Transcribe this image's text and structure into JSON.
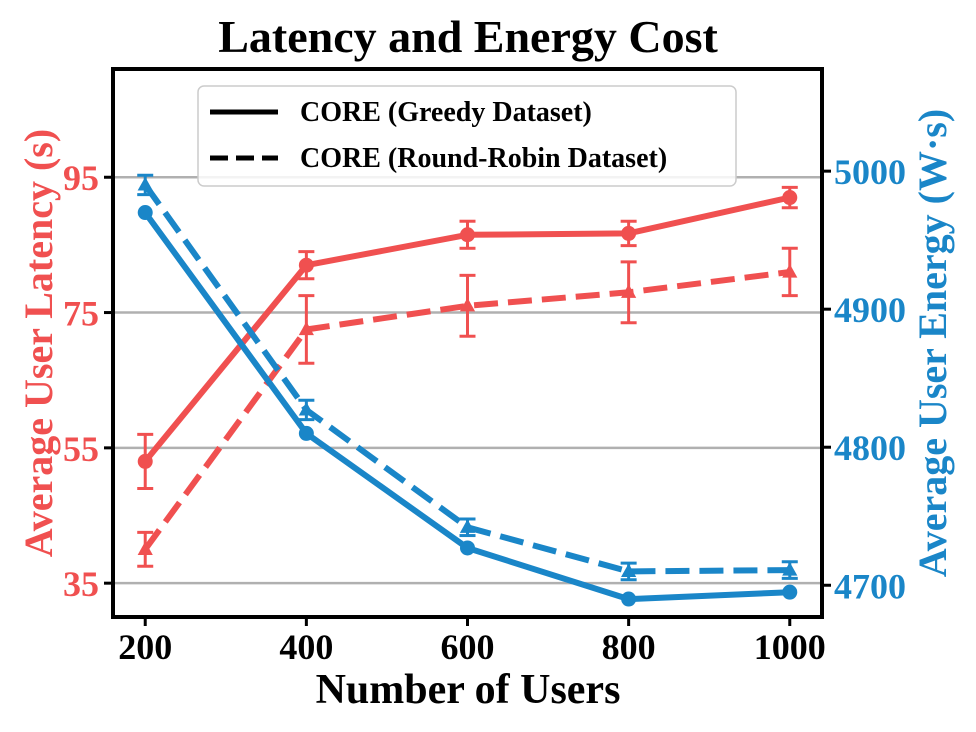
{
  "chart_data": {
    "type": "line",
    "title": "Latency and Energy Cost",
    "xlabel": "Number of Users",
    "ylabel_left": "Average User Latency (s)",
    "ylabel_right": "Average User Energy (W·s)",
    "x": [
      200,
      400,
      600,
      800,
      1000
    ],
    "x_ticks": [
      "200",
      "400",
      "600",
      "800",
      "1000"
    ],
    "xlim": [
      160,
      1040
    ],
    "ylim_left": [
      30,
      111
    ],
    "ylim_right": [
      4677,
      5074
    ],
    "yticks_left": [
      35,
      55,
      75,
      95
    ],
    "yticks_right": [
      4700,
      4800,
      4900,
      5000
    ],
    "grid": "horizontal at left ticks",
    "legend_position": "top-center",
    "legend": [
      {
        "label": "CORE (Greedy Dataset)",
        "style": "solid"
      },
      {
        "label": "CORE (Round-Robin Dataset)",
        "style": "dashed"
      }
    ],
    "colors": {
      "latency": "#f05050",
      "energy": "#1a86c8"
    },
    "series": [
      {
        "metric": "latency",
        "axis": "left",
        "dataset": "greedy",
        "style": "solid",
        "marker": "circle",
        "values": [
          53,
          82,
          86.5,
          86.7,
          92
        ],
        "errors": [
          4,
          2,
          2,
          1.8,
          1.5
        ]
      },
      {
        "metric": "latency",
        "axis": "left",
        "dataset": "round-robin",
        "style": "dashed",
        "marker": "triangle",
        "values": [
          40,
          72.5,
          76,
          78,
          81
        ],
        "errors": [
          2.5,
          5,
          4.5,
          4.5,
          3.5
        ]
      },
      {
        "metric": "energy",
        "axis": "right",
        "dataset": "greedy",
        "style": "solid",
        "marker": "circle",
        "values": [
          4970,
          4810,
          4727,
          4690,
          4695
        ],
        "errors": [
          0,
          0,
          0,
          0,
          0
        ]
      },
      {
        "metric": "energy",
        "axis": "right",
        "dataset": "round-robin",
        "style": "dashed",
        "marker": "triangle",
        "values": [
          4990,
          4827,
          4742,
          4710,
          4711
        ],
        "errors": [
          7,
          7,
          6,
          6,
          6
        ]
      }
    ]
  }
}
